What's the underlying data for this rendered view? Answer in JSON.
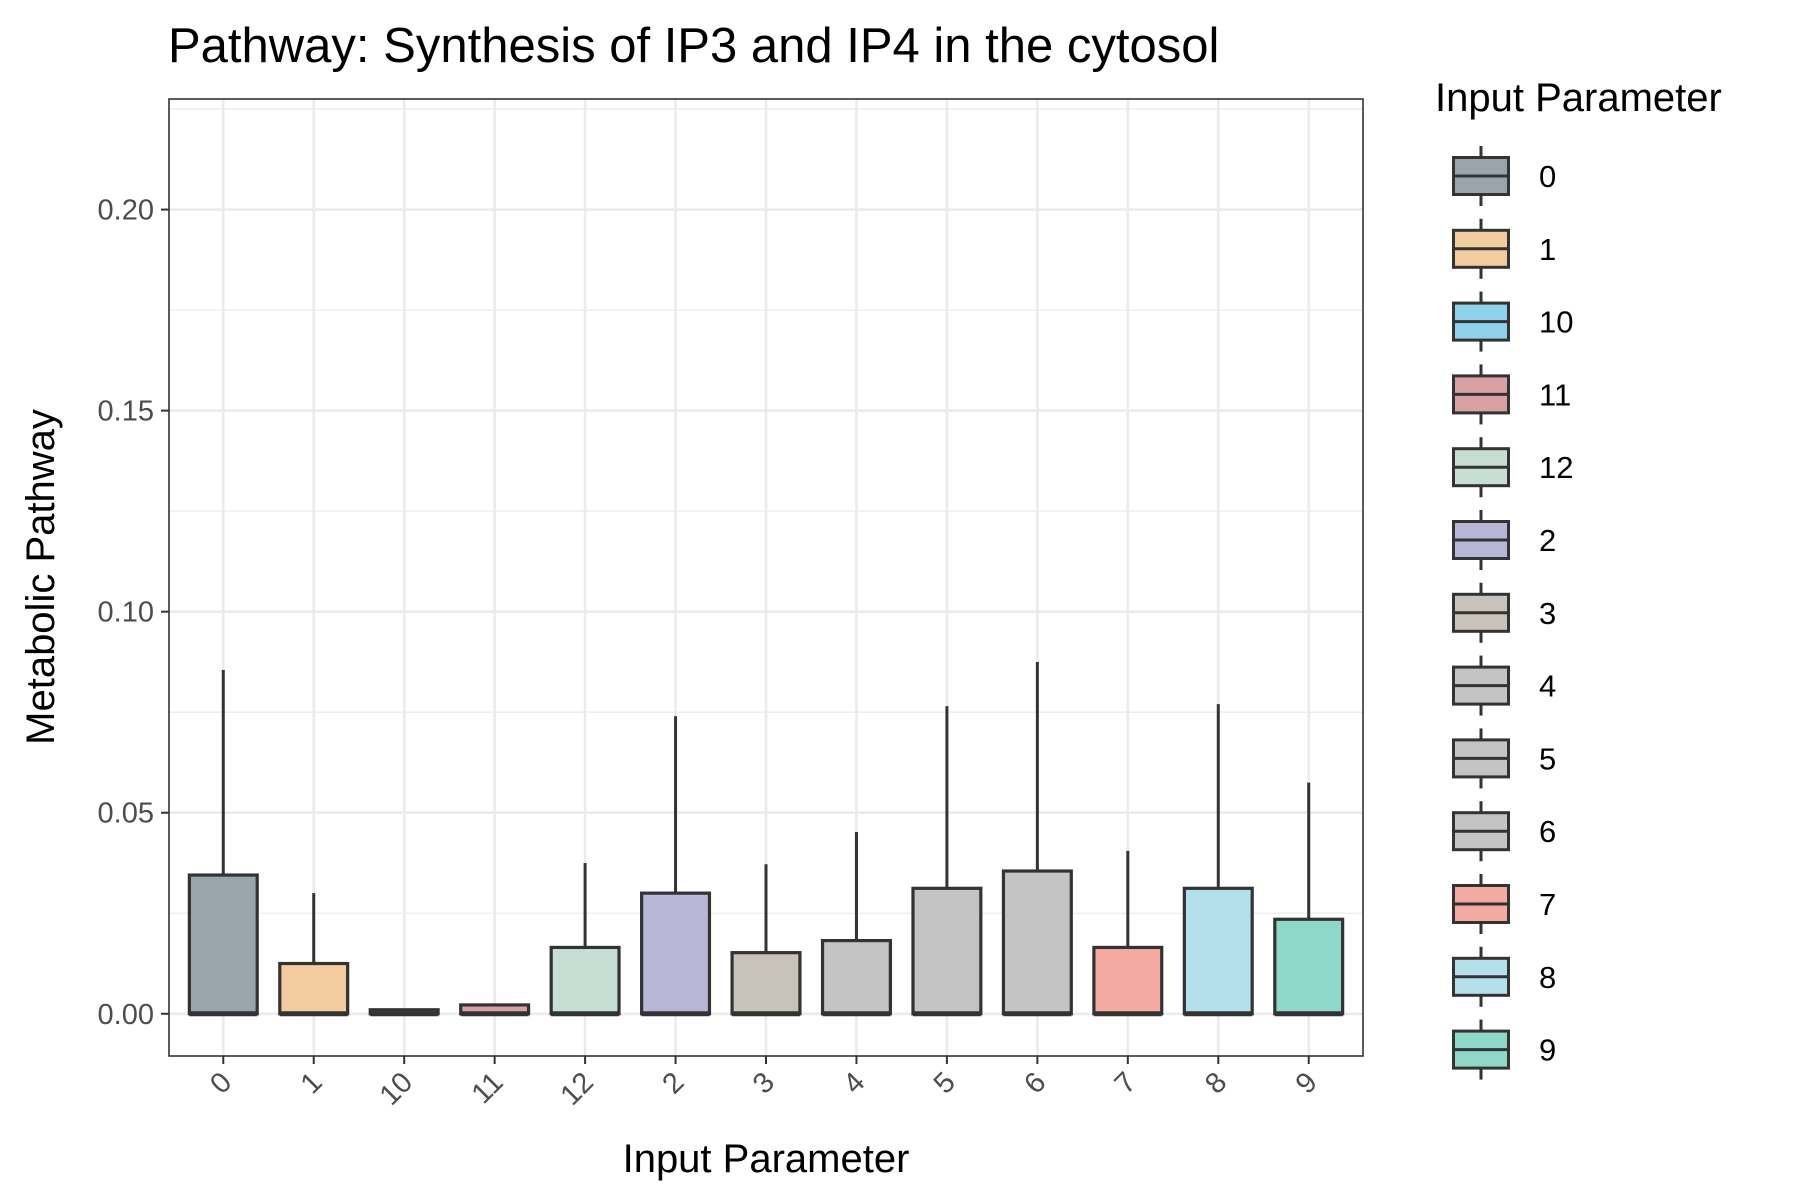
{
  "chart_data": {
    "type": "boxplot",
    "title": "Pathway: Synthesis of IP3 and IP4 in the cytosol",
    "xlabel": "Input Parameter",
    "ylabel": "Metabolic Pathway",
    "ylim": [
      -0.0105,
      0.2275
    ],
    "yticks": [
      0.0,
      0.05,
      0.1,
      0.15,
      0.2
    ],
    "ytick_labels": [
      "0.00",
      "0.05",
      "0.10",
      "0.15",
      "0.20"
    ],
    "grid": true,
    "legend": {
      "title": "Input Parameter",
      "position": "right"
    },
    "categories": [
      "0",
      "1",
      "10",
      "11",
      "12",
      "2",
      "3",
      "4",
      "5",
      "6",
      "7",
      "8",
      "9"
    ],
    "series": [
      {
        "category": "0",
        "min": 0,
        "q1": 0,
        "median": 0,
        "q3": 0.0345,
        "max": 0.0855,
        "color": "#9aa5ab"
      },
      {
        "category": "1",
        "min": 0,
        "q1": 0,
        "median": 0,
        "q3": 0.0125,
        "max": 0.03,
        "color": "#f2cc9e"
      },
      {
        "category": "10",
        "min": 0,
        "q1": 0,
        "median": 0,
        "q3": 0.001,
        "max": 0.001,
        "color": "#8fd2ec"
      },
      {
        "category": "11",
        "min": 0,
        "q1": 0,
        "median": 0,
        "q3": 0.0022,
        "max": 0.0022,
        "color": "#d9a0a3"
      },
      {
        "category": "12",
        "min": 0,
        "q1": 0,
        "median": 0,
        "q3": 0.0165,
        "max": 0.0375,
        "color": "#c7ded5"
      },
      {
        "category": "2",
        "min": 0,
        "q1": 0,
        "median": 0,
        "q3": 0.03,
        "max": 0.074,
        "color": "#b8b6d6"
      },
      {
        "category": "3",
        "min": 0,
        "q1": 0,
        "median": 0,
        "q3": 0.0152,
        "max": 0.0372,
        "color": "#c7c3bb"
      },
      {
        "category": "4",
        "min": 0,
        "q1": 0,
        "median": 0,
        "q3": 0.0182,
        "max": 0.0452,
        "color": "#c4c4c4"
      },
      {
        "category": "5",
        "min": 0,
        "q1": 0,
        "median": 0,
        "q3": 0.0312,
        "max": 0.0765,
        "color": "#c4c4c4"
      },
      {
        "category": "6",
        "min": 0,
        "q1": 0,
        "median": 0,
        "q3": 0.0355,
        "max": 0.0875,
        "color": "#c4c4c4"
      },
      {
        "category": "7",
        "min": 0,
        "q1": 0,
        "median": 0,
        "q3": 0.0165,
        "max": 0.0405,
        "color": "#f4aaa1"
      },
      {
        "category": "8",
        "min": 0,
        "q1": 0,
        "median": 0,
        "q3": 0.0312,
        "max": 0.077,
        "color": "#b3e0ea"
      },
      {
        "category": "9",
        "min": 0,
        "q1": 0,
        "median": 0,
        "q3": 0.0235,
        "max": 0.0575,
        "color": "#8fd7c9"
      }
    ]
  }
}
